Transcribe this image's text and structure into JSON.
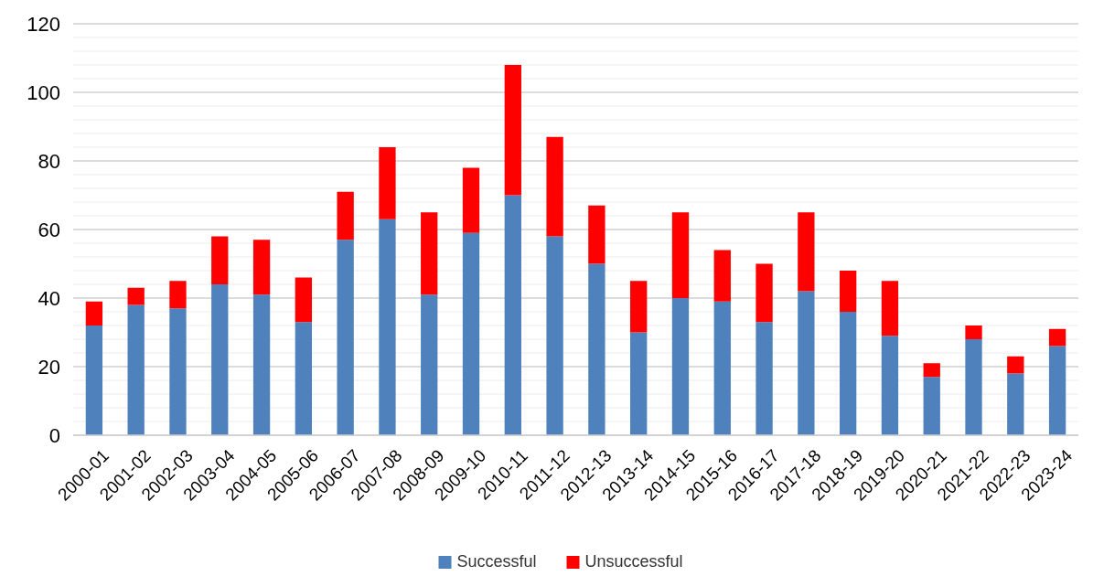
{
  "chart_data": {
    "type": "bar",
    "stacked": true,
    "categories": [
      "2000-01",
      "2001-02",
      "2002-03",
      "2003-04",
      "2004-05",
      "2005-06",
      "2006-07",
      "2007-08",
      "2008-09",
      "2009-10",
      "2010-11",
      "2011-12",
      "2012-13",
      "2013-14",
      "2014-15",
      "2015-16",
      "2016-17",
      "2017-18",
      "2018-19",
      "2019-20",
      "2020-21",
      "2021-22",
      "2022-23",
      "2023-24"
    ],
    "series": [
      {
        "name": "Successful",
        "color": "#4f81bd",
        "values": [
          32,
          38,
          37,
          44,
          41,
          33,
          57,
          63,
          41,
          59,
          70,
          58,
          50,
          30,
          40,
          39,
          33,
          42,
          36,
          29,
          17,
          28,
          18,
          26
        ]
      },
      {
        "name": "Unsuccessful",
        "color": "#ff0000",
        "values": [
          7,
          5,
          8,
          14,
          16,
          13,
          14,
          21,
          24,
          19,
          38,
          29,
          17,
          15,
          25,
          15,
          17,
          23,
          12,
          16,
          4,
          4,
          5,
          5
        ]
      }
    ],
    "ylim": [
      0,
      120
    ],
    "yticks": [
      0,
      {
        "value": 4,
        "label": null
      },
      {
        "value": 8,
        "label": null
      },
      {
        "value": 12,
        "label": null
      },
      {
        "value": 16,
        "label": null
      },
      20,
      {
        "value": 24,
        "label": null
      },
      {
        "value": 28,
        "label": null
      },
      {
        "value": 32,
        "label": null
      },
      {
        "value": 36,
        "label": null
      },
      40,
      {
        "value": 44,
        "label": null
      },
      {
        "value": 48,
        "label": null
      },
      {
        "value": 52,
        "label": null
      },
      {
        "value": 56,
        "label": null
      },
      60,
      {
        "value": 64,
        "label": null
      },
      {
        "value": 68,
        "label": null
      },
      {
        "value": 72,
        "label": null
      },
      {
        "value": 76,
        "label": null
      },
      80,
      {
        "value": 84,
        "label": null
      },
      {
        "value": 88,
        "label": null
      },
      {
        "value": 92,
        "label": null
      },
      {
        "value": 96,
        "label": null
      },
      100,
      {
        "value": 104,
        "label": null
      },
      {
        "value": 108,
        "label": null
      },
      {
        "value": 112,
        "label": null
      },
      {
        "value": 116,
        "label": null
      },
      120
    ],
    "grid": "y",
    "legend": "bottom"
  }
}
